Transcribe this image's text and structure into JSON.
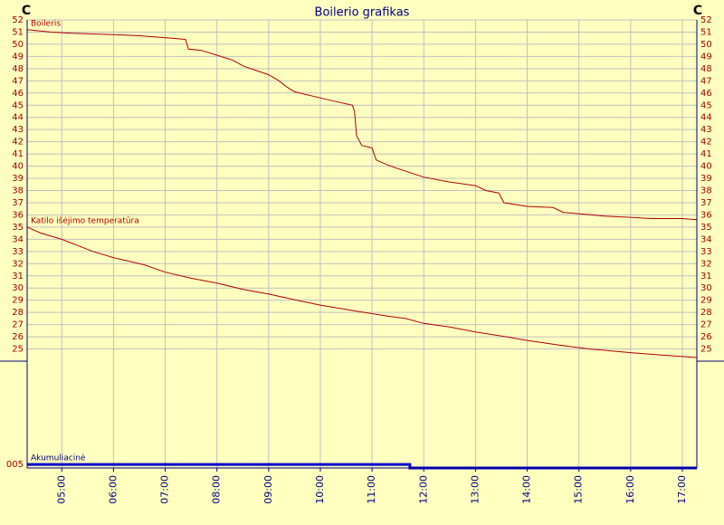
{
  "chart_data": [
    {
      "type": "line",
      "title": "Boilerio grafikas",
      "y_unit": "C",
      "xlim": [
        4.33,
        17.28
      ],
      "xticks": [
        {
          "value": 5,
          "label": "05:00"
        },
        {
          "value": 6,
          "label": "06:00"
        },
        {
          "value": 7,
          "label": "07:00"
        },
        {
          "value": 8,
          "label": "08:00"
        },
        {
          "value": 9,
          "label": "09:00"
        },
        {
          "value": 10,
          "label": "10:00"
        },
        {
          "value": 11,
          "label": "11:00"
        },
        {
          "value": 12,
          "label": "12:00"
        },
        {
          "value": 13,
          "label": "13:00"
        },
        {
          "value": 14,
          "label": "14:00"
        },
        {
          "value": 15,
          "label": "15:00"
        },
        {
          "value": 16,
          "label": "16:00"
        },
        {
          "value": 17,
          "label": "17:00"
        }
      ],
      "ylim": [
        24,
        52
      ],
      "yticks": [
        25,
        26,
        27,
        28,
        29,
        30,
        31,
        32,
        33,
        34,
        35,
        36,
        37,
        38,
        39,
        40,
        41,
        42,
        43,
        44,
        45,
        46,
        47,
        48,
        49,
        50,
        51,
        52
      ],
      "grid": true,
      "series": [
        {
          "name": "Boileris",
          "color": "#b00000",
          "x": [
            4.33,
            4.8,
            5.2,
            6.0,
            6.5,
            6.8,
            7.39,
            7.45,
            7.7,
            8.0,
            8.3,
            8.52,
            8.8,
            9.0,
            9.2,
            9.35,
            9.5,
            10.0,
            10.3,
            10.62,
            10.66,
            10.7,
            10.8,
            11.0,
            11.08,
            11.3,
            11.5,
            12.0,
            12.5,
            13.0,
            13.2,
            13.45,
            13.55,
            14.0,
            14.5,
            14.7,
            15.0,
            15.5,
            16.0,
            16.4,
            17.0,
            17.28
          ],
          "values": [
            51.2,
            51.0,
            50.9,
            50.8,
            50.7,
            50.6,
            50.4,
            49.6,
            49.5,
            49.1,
            48.7,
            48.2,
            47.8,
            47.5,
            47.0,
            46.5,
            46.1,
            45.6,
            45.3,
            45.0,
            44.5,
            42.5,
            41.7,
            41.5,
            40.5,
            40.1,
            39.8,
            39.1,
            38.7,
            38.4,
            38.0,
            37.8,
            37.0,
            36.7,
            36.6,
            36.2,
            36.1,
            35.9,
            35.8,
            35.7,
            35.7,
            35.6
          ]
        },
        {
          "name": "Katilo išėjimo temperatūra",
          "color": "#b00000",
          "x": [
            4.33,
            4.6,
            5.0,
            5.6,
            6.0,
            6.6,
            7.0,
            7.5,
            8.0,
            8.5,
            9.0,
            9.55,
            10.0,
            10.7,
            11.3,
            11.65,
            12.0,
            12.5,
            13.0,
            13.6,
            14.0,
            14.65,
            15.2,
            16.0,
            16.6,
            17.28
          ],
          "values": [
            35.0,
            34.5,
            34.0,
            33.0,
            32.5,
            31.9,
            31.3,
            30.8,
            30.4,
            29.9,
            29.5,
            29.0,
            28.6,
            28.1,
            27.7,
            27.5,
            27.1,
            26.8,
            26.4,
            26.0,
            25.7,
            25.3,
            25.0,
            24.7,
            24.5,
            24.3
          ]
        }
      ]
    },
    {
      "type": "line",
      "xlim": [
        4.33,
        17.28
      ],
      "ylim": [
        0,
        150
      ],
      "yticks": [
        {
          "value": 5,
          "label": "005"
        }
      ],
      "series": [
        {
          "name": "Akumuliacinė",
          "color": "#0000cc",
          "x": [
            4.33,
            11.73,
            11.73,
            17.28
          ],
          "values": [
            5,
            5,
            0,
            0
          ]
        }
      ]
    }
  ]
}
